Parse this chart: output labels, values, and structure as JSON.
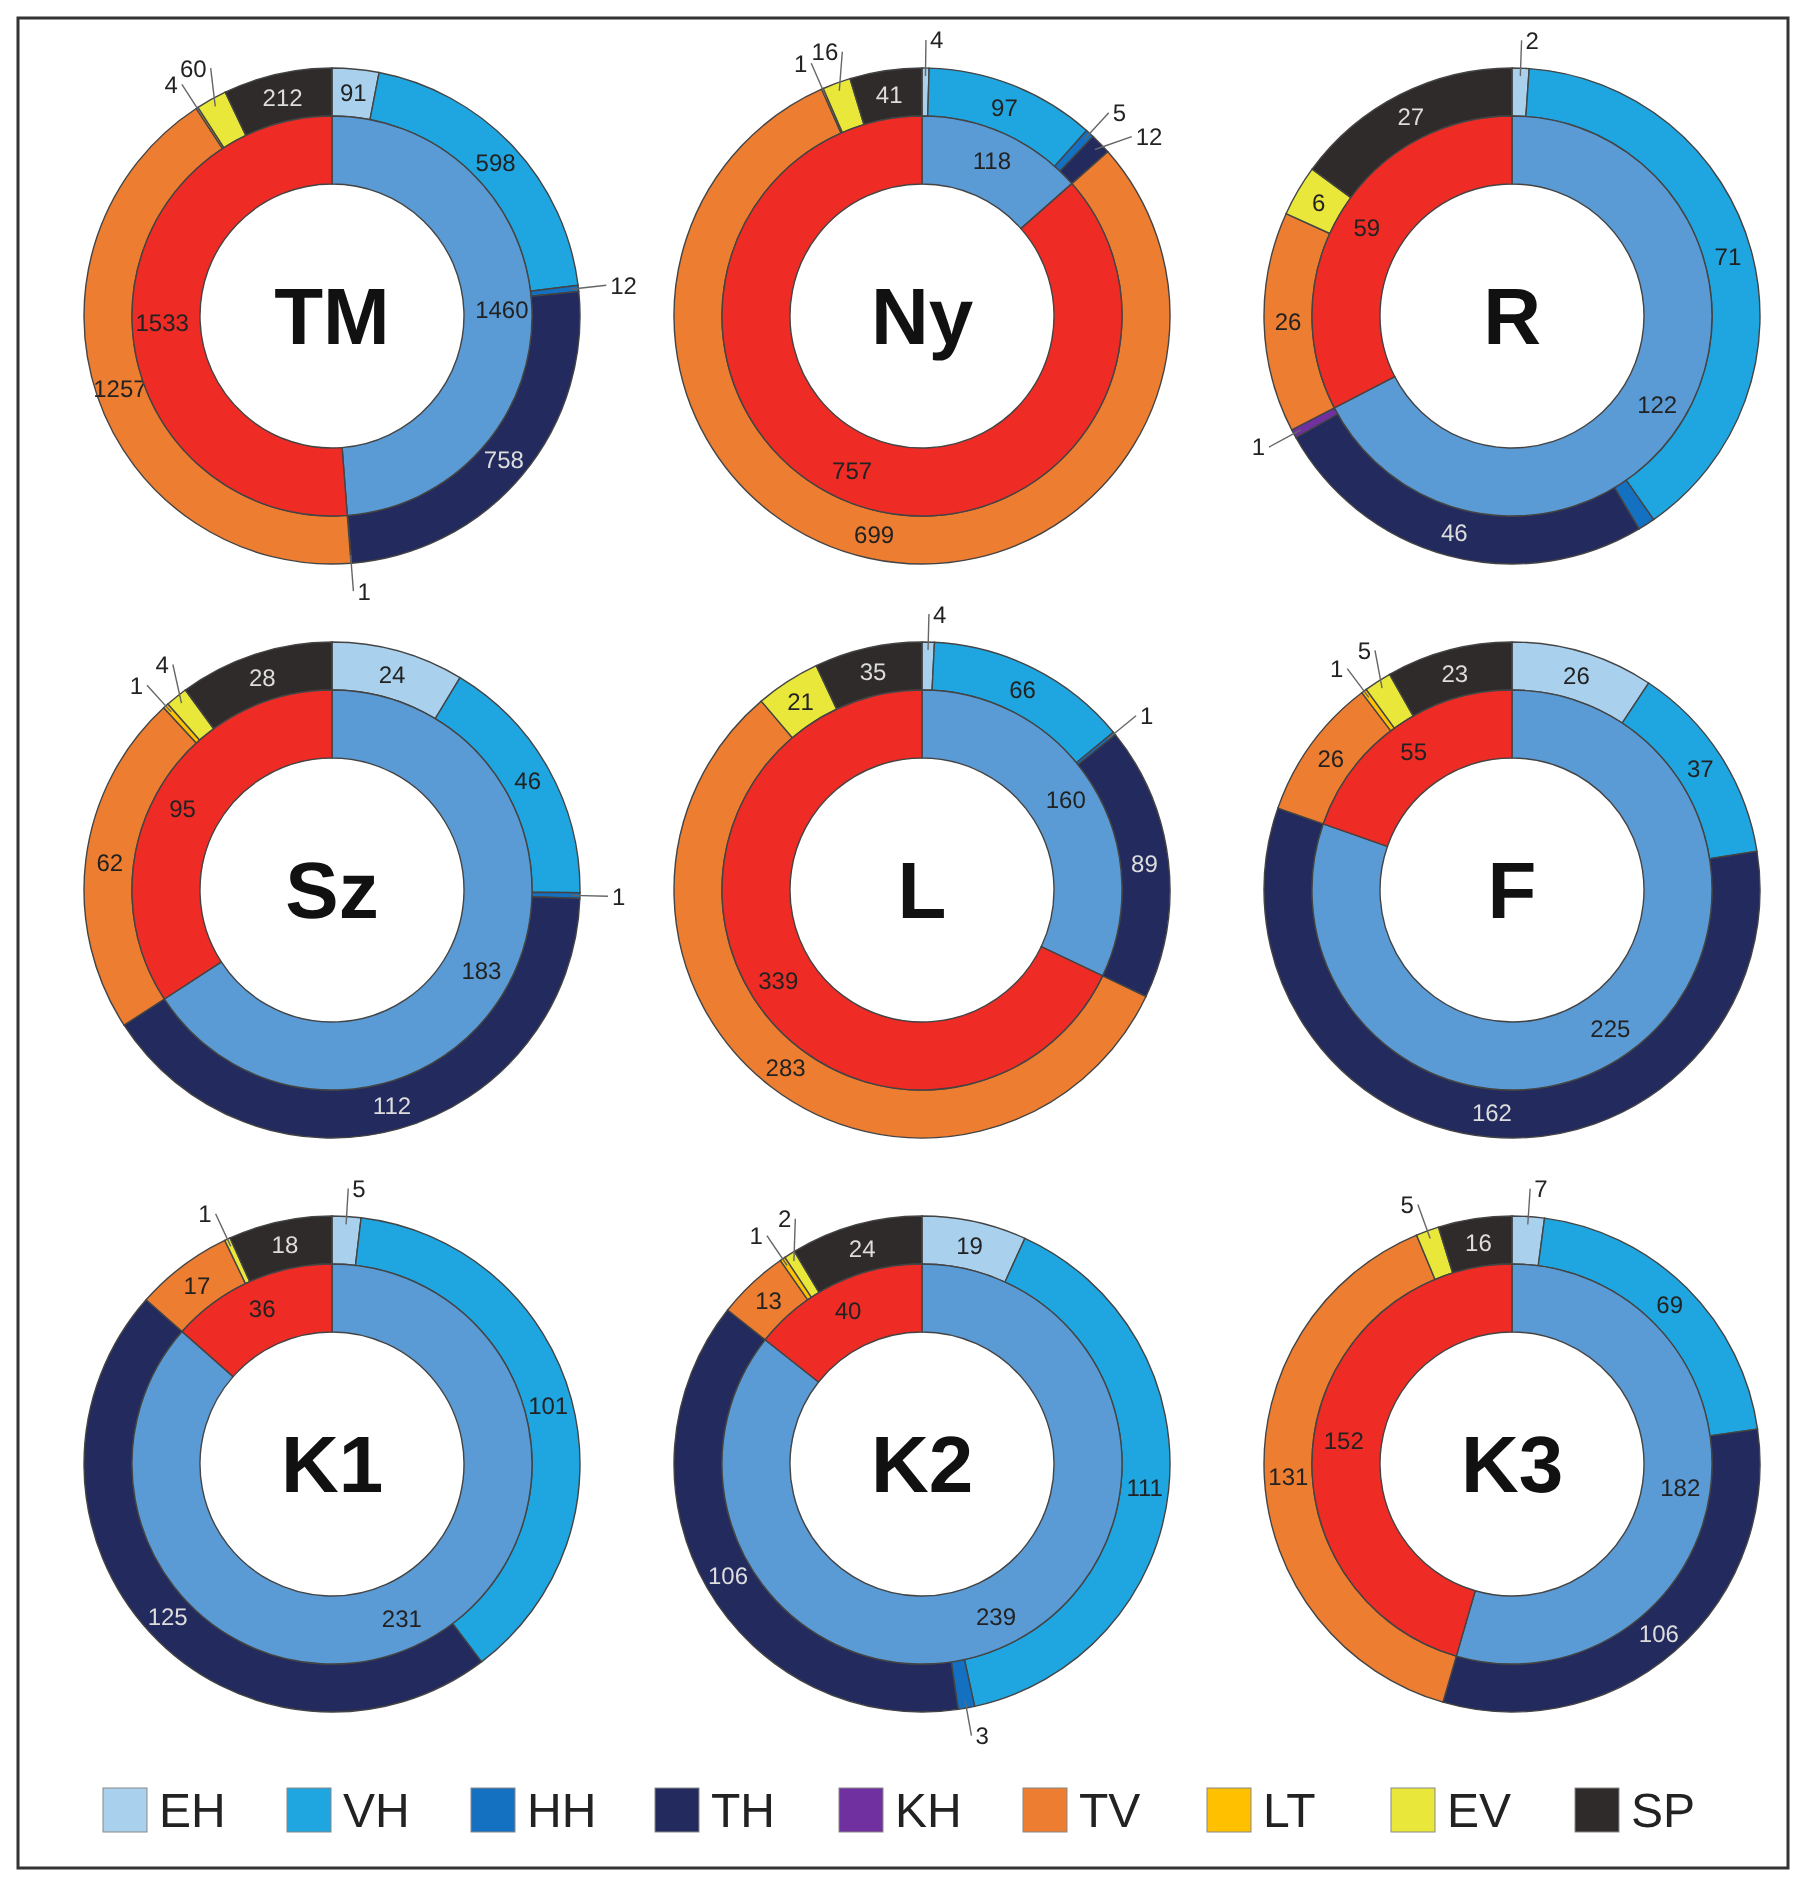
{
  "chart_data": [
    {
      "type": "donut",
      "title": "TM",
      "legend": "bottom",
      "categories": [
        "EH",
        "VH",
        "HH",
        "TH",
        "KH",
        "TV",
        "LT",
        "EV",
        "SP"
      ],
      "colors": [
        "#a9d1ee",
        "#1fa6e0",
        "#1470c0",
        "#232a5e",
        "#7030a0",
        "#ed7d31",
        "#ffc000",
        "#e9e83a",
        "#302b2b"
      ],
      "values": [
        91,
        598,
        12,
        758,
        1,
        1257,
        4,
        60,
        212
      ],
      "data_labels": true
    },
    {
      "type": "donut",
      "categories": [
        null,
        null
      ],
      "colors": [
        "#5b9bd5",
        "#ee2b24"
      ],
      "values": [
        1460,
        1533
      ],
      "data_labels": true
    },
    {
      "type": "donut",
      "title": "Ny",
      "categories": [
        null,
        null,
        null,
        null,
        null,
        null,
        null,
        null,
        null
      ],
      "colors": [
        "#a9d1ee",
        "#1fa6e0",
        "#1470c0",
        "#232a5e",
        null,
        "#ed7d31",
        "#ffc000",
        "#e9e83a",
        "#302b2b"
      ],
      "values": [
        4,
        97,
        5,
        12,
        null,
        699,
        1,
        16,
        41
      ],
      "data_labels": true
    },
    {
      "type": "donut",
      "categories": [
        null,
        null
      ],
      "colors": [
        "#5b9bd5",
        "#ee2b24"
      ],
      "values": [
        118,
        757
      ],
      "data_labels": true
    },
    {
      "type": "donut",
      "title": "R",
      "categories": [
        null,
        null,
        null,
        null,
        null,
        null,
        null,
        null,
        null
      ],
      "colors": [
        "#a9d1ee",
        "#1fa6e0",
        "#1470c0",
        "#232a5e",
        "#7030a0",
        "#ed7d31",
        null,
        "#e9e83a",
        "#302b2b"
      ],
      "values": [
        2,
        71,
        2,
        46,
        1,
        26,
        null,
        6,
        27
      ],
      "value_labels": [
        "2",
        "71",
        null,
        "46",
        "1",
        "26",
        null,
        "6",
        "27"
      ]
    },
    {
      "type": "donut",
      "categories": [
        null,
        null
      ],
      "colors": [
        "#5b9bd5",
        "#ee2b24"
      ],
      "values": [
        122,
        59
      ],
      "data_labels": true
    },
    {
      "type": "donut",
      "title": "Sz",
      "categories": [
        null,
        null,
        null,
        null,
        null,
        null,
        null,
        null,
        null
      ],
      "colors": [
        "#a9d1ee",
        "#1fa6e0",
        "#1470c0",
        "#232a5e",
        null,
        "#ed7d31",
        "#ffc000",
        "#e9e83a",
        "#302b2b"
      ],
      "values": [
        24,
        46,
        1,
        112,
        null,
        62,
        1,
        4,
        28
      ],
      "data_labels": true
    },
    {
      "type": "donut",
      "categories": [
        null,
        null
      ],
      "colors": [
        "#5b9bd5",
        "#ee2b24"
      ],
      "values": [
        183,
        95
      ],
      "data_labels": true
    },
    {
      "type": "donut",
      "title": "L",
      "categories": [
        null,
        null,
        null,
        null,
        null,
        null,
        null,
        null,
        null
      ],
      "colors": [
        "#a9d1ee",
        "#1fa6e0",
        "#1470c0",
        "#232a5e",
        null,
        "#ed7d31",
        null,
        "#e9e83a",
        "#302b2b"
      ],
      "values": [
        4,
        66,
        1,
        89,
        null,
        283,
        null,
        21,
        35
      ],
      "data_labels": true
    },
    {
      "type": "donut",
      "categories": [
        null,
        null
      ],
      "colors": [
        "#5b9bd5",
        "#ee2b24"
      ],
      "values": [
        160,
        339
      ],
      "data_labels": true
    },
    {
      "type": "donut",
      "title": "F",
      "categories": [
        null,
        null,
        null,
        null,
        null,
        null,
        null,
        null,
        null
      ],
      "colors": [
        "#a9d1ee",
        "#1fa6e0",
        null,
        "#232a5e",
        null,
        "#ed7d31",
        "#ffc000",
        "#e9e83a",
        "#302b2b"
      ],
      "values": [
        26,
        37,
        null,
        162,
        null,
        26,
        1,
        5,
        23
      ],
      "data_labels": true
    },
    {
      "type": "donut",
      "categories": [
        null,
        null
      ],
      "colors": [
        "#5b9bd5",
        "#ee2b24"
      ],
      "values": [
        225,
        55
      ],
      "data_labels": true
    },
    {
      "type": "donut",
      "title": "K1",
      "categories": [
        null,
        null,
        null,
        null,
        null,
        null,
        null,
        null,
        null
      ],
      "colors": [
        "#a9d1ee",
        "#1fa6e0",
        null,
        "#232a5e",
        null,
        "#ed7d31",
        null,
        "#e9e83a",
        "#302b2b"
      ],
      "values": [
        5,
        101,
        null,
        125,
        null,
        17,
        null,
        1,
        18
      ],
      "data_labels": true
    },
    {
      "type": "donut",
      "categories": [
        null,
        null
      ],
      "colors": [
        "#5b9bd5",
        "#ee2b24"
      ],
      "values": [
        231,
        36
      ],
      "data_labels": true
    },
    {
      "type": "donut",
      "title": "K2",
      "categories": [
        null,
        null,
        null,
        null,
        null,
        null,
        null,
        null,
        null
      ],
      "colors": [
        "#a9d1ee",
        "#1fa6e0",
        "#1470c0",
        "#232a5e",
        null,
        "#ed7d31",
        "#ffc000",
        "#e9e83a",
        "#302b2b"
      ],
      "values": [
        19,
        111,
        3,
        106,
        null,
        13,
        1,
        2,
        24
      ],
      "data_labels": true
    },
    {
      "type": "donut",
      "categories": [
        null,
        null
      ],
      "colors": [
        "#5b9bd5",
        "#ee2b24"
      ],
      "values": [
        239,
        40
      ],
      "data_labels": true
    },
    {
      "type": "donut",
      "title": "K3",
      "categories": [
        null,
        null,
        null,
        null,
        null,
        null,
        null,
        null,
        null
      ],
      "colors": [
        "#a9d1ee",
        "#1fa6e0",
        null,
        "#232a5e",
        null,
        "#ed7d31",
        null,
        "#e9e83a",
        "#302b2b"
      ],
      "values": [
        7,
        69,
        null,
        106,
        null,
        131,
        null,
        5,
        16
      ],
      "data_labels": true
    },
    {
      "type": "donut",
      "categories": [
        null,
        null
      ],
      "colors": [
        "#5b9bd5",
        "#ee2b24"
      ],
      "values": [
        182,
        152
      ],
      "data_labels": true
    }
  ]
}
